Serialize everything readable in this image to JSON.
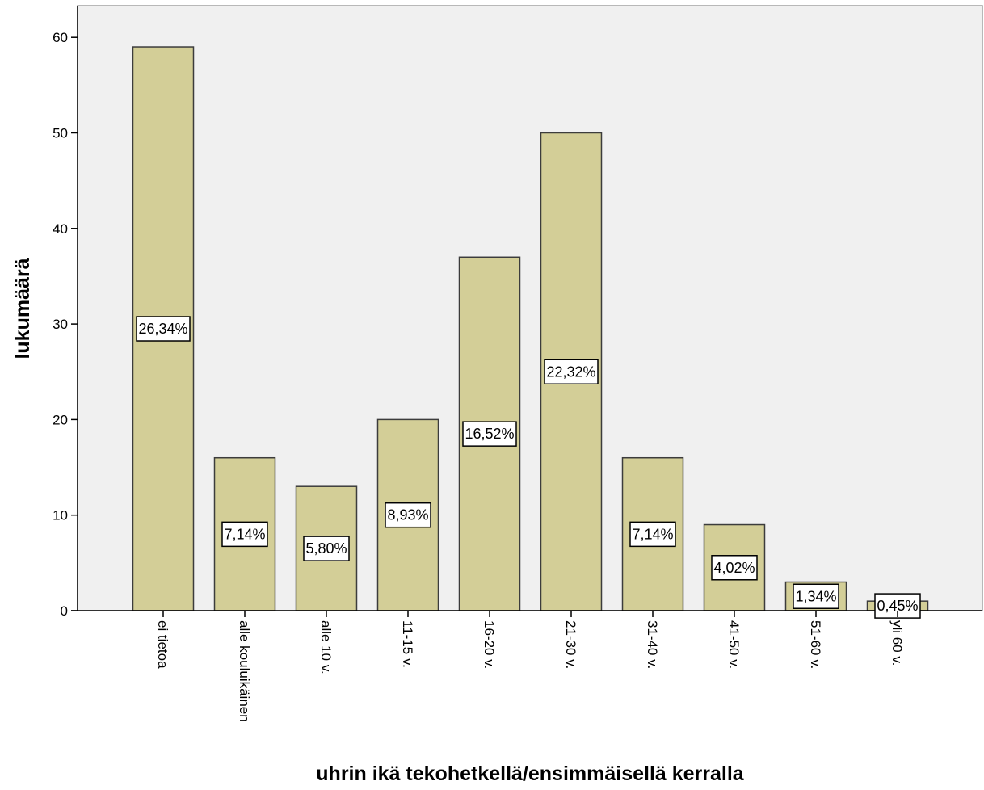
{
  "chart_data": {
    "type": "bar",
    "xlabel": "uhrin ikä tekohetkellä/ensimmäisellä kerralla",
    "ylabel": "lukumäärä",
    "ylim": [
      0,
      63
    ],
    "yticks": [
      0,
      10,
      20,
      30,
      40,
      50,
      60
    ],
    "grid": false,
    "categories": [
      "ei tietoa",
      "alle kouluikäinen",
      "alle 10 v.",
      "11-15 v.",
      "16-20 v.",
      "21-30 v.",
      "31-40 v.",
      "41-50 v.",
      "51-60 v.",
      "yli 60 v."
    ],
    "values": [
      59,
      16,
      13,
      20,
      37,
      50,
      16,
      9,
      3,
      1
    ],
    "data_labels": [
      "26,34%",
      "7,14%",
      "5,80%",
      "8,93%",
      "16,52%",
      "22,32%",
      "7,14%",
      "4,02%",
      "1,34%",
      "0,45%"
    ]
  },
  "colors": {
    "plot_background": "#f0f0f0",
    "bar_fill": "#d3ce97",
    "bar_stroke": "#3c3c3c",
    "axis": "#000000",
    "label_box": "#ffffff"
  }
}
